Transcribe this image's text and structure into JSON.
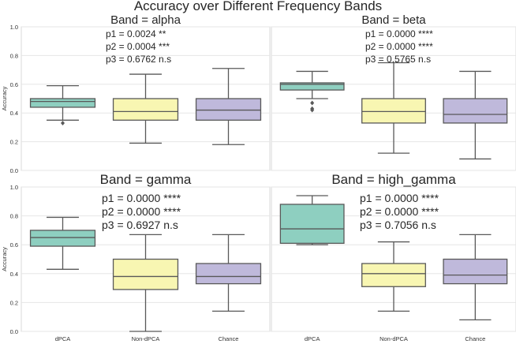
{
  "figure": {
    "title": "Accuracy over Different Frequency Bands"
  },
  "chart_data": {
    "type": "box",
    "ylabel": "Accuracy",
    "ylim": [
      0,
      1
    ],
    "yticks": [
      "0.0",
      "0.2",
      "0.4",
      "0.6",
      "0.8",
      "1.0"
    ],
    "categories": [
      "dPCA",
      "Non-dPCA",
      "Chance"
    ],
    "colors": [
      "#8ecfc0",
      "#f8f6b2",
      "#bfb9db"
    ],
    "grid": true,
    "panels": [
      {
        "title": "Band = alpha",
        "annotations": [
          "p1 = 0.0024 **",
          "p2 = 0.0004 ***",
          "p3 = 0.6762 n.s"
        ],
        "boxes": [
          {
            "category": "dPCA",
            "whislo": 0.35,
            "q1": 0.44,
            "med": 0.48,
            "q3": 0.5,
            "whishi": 0.59,
            "fliers": [
              0.33
            ]
          },
          {
            "category": "Non-dPCA",
            "whislo": 0.19,
            "q1": 0.35,
            "med": 0.41,
            "q3": 0.5,
            "whishi": 0.67,
            "fliers": []
          },
          {
            "category": "Chance",
            "whislo": 0.18,
            "q1": 0.35,
            "med": 0.42,
            "q3": 0.5,
            "whishi": 0.71,
            "fliers": []
          }
        ]
      },
      {
        "title": "Band = beta",
        "annotations": [
          "p1 = 0.0000 ****",
          "p2 = 0.0000 ****",
          "p3 = 0.5765 n.s"
        ],
        "boxes": [
          {
            "category": "dPCA",
            "whislo": 0.5,
            "q1": 0.56,
            "med": 0.6,
            "q3": 0.61,
            "whishi": 0.69,
            "fliers": [
              0.47,
              0.43,
              0.42
            ]
          },
          {
            "category": "Non-dPCA",
            "whislo": 0.12,
            "q1": 0.33,
            "med": 0.41,
            "q3": 0.5,
            "whishi": 0.75,
            "fliers": []
          },
          {
            "category": "Chance",
            "whislo": 0.08,
            "q1": 0.33,
            "med": 0.39,
            "q3": 0.5,
            "whishi": 0.69,
            "fliers": []
          }
        ]
      },
      {
        "title": "Band = gamma",
        "annotations": [
          "p1 = 0.0000 ****",
          "p2 = 0.0000 ****",
          "p3 = 0.6927 n.s"
        ],
        "boxes": [
          {
            "category": "dPCA",
            "whislo": 0.43,
            "q1": 0.59,
            "med": 0.65,
            "q3": 0.7,
            "whishi": 0.79,
            "fliers": []
          },
          {
            "category": "Non-dPCA",
            "whislo": 0.0,
            "q1": 0.29,
            "med": 0.38,
            "q3": 0.5,
            "whishi": 0.67,
            "fliers": []
          },
          {
            "category": "Chance",
            "whislo": 0.14,
            "q1": 0.33,
            "med": 0.38,
            "q3": 0.47,
            "whishi": 0.67,
            "fliers": []
          }
        ]
      },
      {
        "title": "Band = high_gamma",
        "annotations": [
          "p1 = 0.0000 ****",
          "p2 = 0.0000 ****",
          "p3 = 0.7056 n.s"
        ],
        "boxes": [
          {
            "category": "dPCA",
            "whislo": 0.6,
            "q1": 0.61,
            "med": 0.71,
            "q3": 0.88,
            "whishi": 0.94,
            "fliers": []
          },
          {
            "category": "Non-dPCA",
            "whislo": 0.14,
            "q1": 0.31,
            "med": 0.4,
            "q3": 0.47,
            "whishi": 0.62,
            "fliers": []
          },
          {
            "category": "Chance",
            "whislo": 0.08,
            "q1": 0.33,
            "med": 0.39,
            "q3": 0.5,
            "whishi": 0.67,
            "fliers": []
          }
        ]
      }
    ]
  }
}
